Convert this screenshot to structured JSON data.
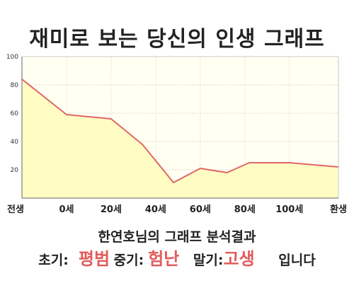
{
  "title": "재미로 보는 당신의 인생 그래프",
  "chart_data": {
    "type": "area",
    "title": "재미로 보는 당신의 인생 그래프",
    "xlabel": "",
    "ylabel": "",
    "ylim": [
      0,
      100
    ],
    "yticks": [
      100,
      80,
      60,
      40,
      20
    ],
    "xticks": [
      "전생",
      "0세",
      "20세",
      "40세",
      "60세",
      "80세",
      "100세",
      "환생"
    ],
    "grid": true,
    "legend": "none",
    "fill_color": "#fffdc4",
    "line_color": "#e06666",
    "plot_background": "#fffff2",
    "series": [
      {
        "x": [
          -20,
          0,
          20,
          34,
          48,
          60,
          72,
          82,
          100,
          122
        ],
        "values": [
          84,
          59,
          56,
          38,
          11,
          21,
          18,
          25,
          25,
          22
        ]
      }
    ]
  },
  "summary": {
    "name_line": "한연호님의 그래프 분석결과",
    "early_label": "초기:",
    "early_value": "평범",
    "mid_label": "중기:",
    "mid_value": "험난",
    "late_label": "말기:",
    "late_value": "고생",
    "suffix": "입니다"
  },
  "colors": {
    "accent": "#e35b5b"
  }
}
